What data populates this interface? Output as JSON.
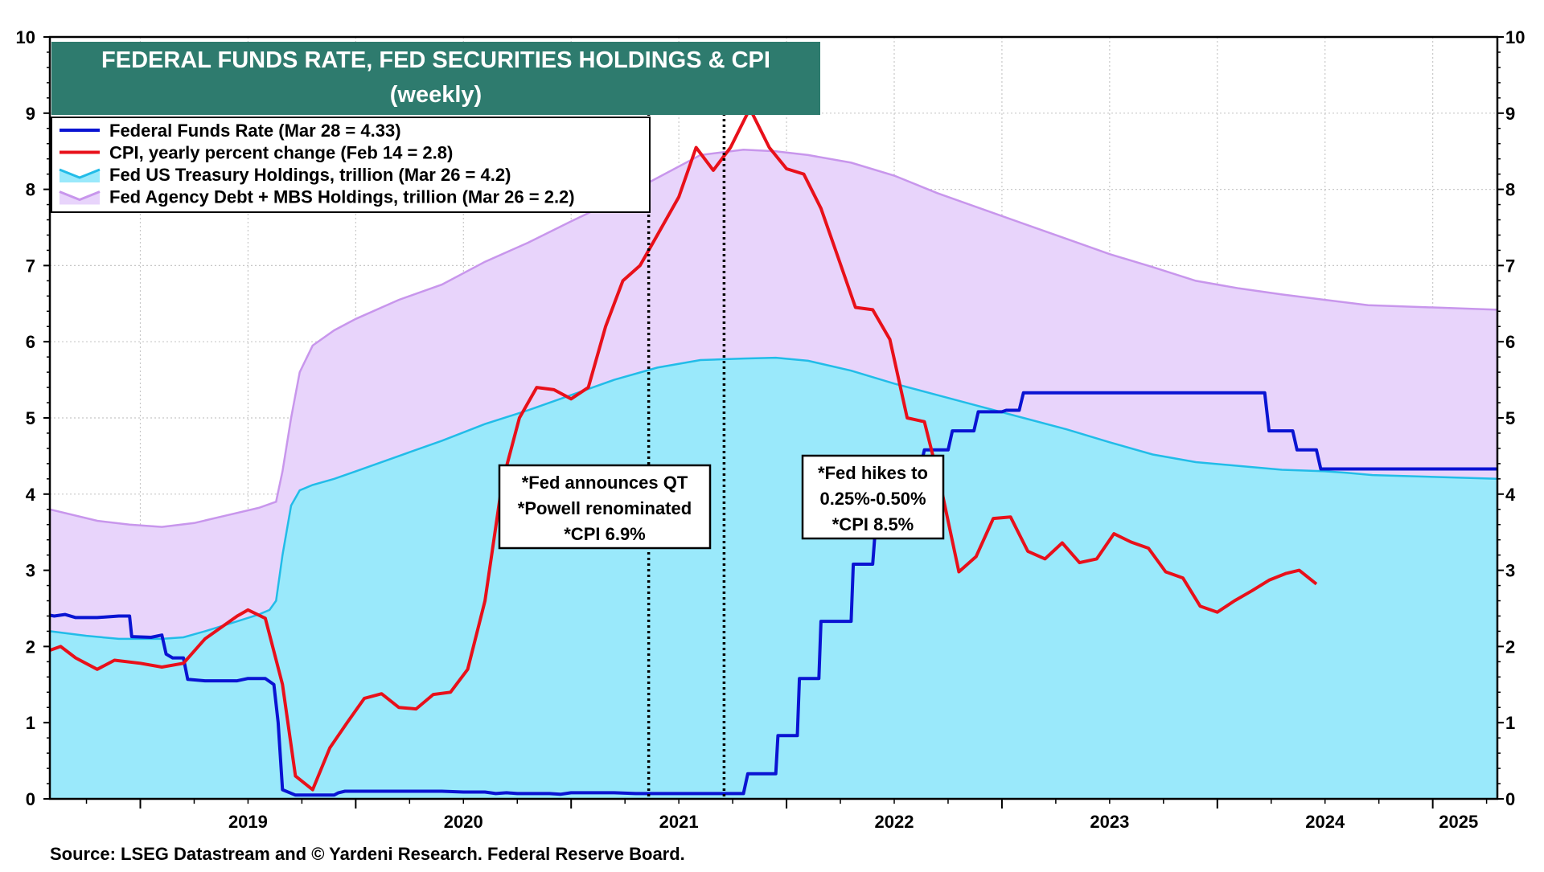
{
  "chart_data": {
    "type": "area",
    "title": "FEDERAL FUNDS RATE, FED SECURITIES HOLDINGS & CPI",
    "subtitle": "(weekly)",
    "source": "Source: LSEG Datastream and © Yardeni Research. Federal Reserve Board.",
    "xlim": [
      2018.58,
      2025.3
    ],
    "ylim": [
      0,
      10
    ],
    "y_ticks": [
      "0",
      "1",
      "2",
      "3",
      "4",
      "5",
      "6",
      "7",
      "8",
      "9",
      "10"
    ],
    "x_tick_labels": [
      "2019",
      "2020",
      "2021",
      "2022",
      "2023",
      "2024",
      "2025"
    ],
    "grid": true,
    "legend_position": "top-left",
    "colors": {
      "fed_funds": "#0a14d2",
      "cpi": "#e8101a",
      "treasury_fill": "#9ae9fb",
      "treasury_line": "#22bce8",
      "mbs_fill": "#e8d4fb",
      "mbs_line": "#c896ec",
      "title_bg": "#2e7b6e"
    },
    "series": [
      {
        "name": "Federal Funds Rate (Mar 28 = 4.33)",
        "kind": "line",
        "points": [
          [
            2018.58,
            2.41
          ],
          [
            2018.6,
            2.4
          ],
          [
            2018.65,
            2.42
          ],
          [
            2018.7,
            2.38
          ],
          [
            2018.8,
            2.38
          ],
          [
            2018.9,
            2.4
          ],
          [
            2018.95,
            2.4
          ],
          [
            2018.96,
            2.13
          ],
          [
            2019.05,
            2.12
          ],
          [
            2019.1,
            2.15
          ],
          [
            2019.12,
            1.9
          ],
          [
            2019.15,
            1.85
          ],
          [
            2019.2,
            1.85
          ],
          [
            2019.22,
            1.57
          ],
          [
            2019.3,
            1.55
          ],
          [
            2019.45,
            1.55
          ],
          [
            2019.5,
            1.58
          ],
          [
            2019.58,
            1.58
          ],
          [
            2019.62,
            1.5
          ],
          [
            2019.64,
            1.0
          ],
          [
            2019.66,
            0.12
          ],
          [
            2019.72,
            0.05
          ],
          [
            2019.8,
            0.05
          ],
          [
            2019.9,
            0.05
          ],
          [
            2019.92,
            0.08
          ],
          [
            2019.95,
            0.1
          ],
          [
            2020.1,
            0.1
          ],
          [
            2020.4,
            0.1
          ],
          [
            2020.5,
            0.09
          ],
          [
            2020.6,
            0.09
          ],
          [
            2020.65,
            0.07
          ],
          [
            2020.7,
            0.08
          ],
          [
            2020.75,
            0.07
          ],
          [
            2020.9,
            0.07
          ],
          [
            2020.95,
            0.06
          ],
          [
            2021.0,
            0.08
          ],
          [
            2021.2,
            0.08
          ],
          [
            2021.3,
            0.07
          ],
          [
            2021.8,
            0.07
          ],
          [
            2021.82,
            0.33
          ],
          [
            2021.95,
            0.33
          ],
          [
            2021.96,
            0.83
          ],
          [
            2022.05,
            0.83
          ],
          [
            2022.06,
            1.58
          ],
          [
            2022.15,
            1.58
          ],
          [
            2022.16,
            2.33
          ],
          [
            2022.3,
            2.33
          ],
          [
            2022.31,
            3.08
          ],
          [
            2022.4,
            3.08
          ],
          [
            2022.42,
            3.83
          ],
          [
            2022.48,
            3.83
          ],
          [
            2022.5,
            4.33
          ],
          [
            2022.62,
            4.33
          ],
          [
            2022.64,
            4.58
          ],
          [
            2022.75,
            4.58
          ],
          [
            2022.77,
            4.83
          ],
          [
            2022.87,
            4.83
          ],
          [
            2022.89,
            5.08
          ],
          [
            2023.0,
            5.08
          ],
          [
            2023.02,
            5.1
          ],
          [
            2023.08,
            5.1
          ],
          [
            2023.1,
            5.33
          ],
          [
            2024.22,
            5.33
          ],
          [
            2024.24,
            4.83
          ],
          [
            2024.35,
            4.83
          ],
          [
            2024.37,
            4.58
          ],
          [
            2024.46,
            4.58
          ],
          [
            2024.48,
            4.33
          ],
          [
            2025.3,
            4.33
          ]
        ]
      },
      {
        "name": "CPI, yearly percent change (Feb 14 = 2.8)",
        "kind": "line",
        "points": [
          [
            2018.58,
            1.95
          ],
          [
            2018.63,
            2.0
          ],
          [
            2018.7,
            1.85
          ],
          [
            2018.8,
            1.7
          ],
          [
            2018.88,
            1.82
          ],
          [
            2019.0,
            1.78
          ],
          [
            2019.1,
            1.73
          ],
          [
            2019.2,
            1.78
          ],
          [
            2019.3,
            2.1
          ],
          [
            2019.4,
            2.3
          ],
          [
            2019.45,
            2.4
          ],
          [
            2019.5,
            2.48
          ],
          [
            2019.58,
            2.37
          ],
          [
            2019.66,
            1.5
          ],
          [
            2019.72,
            0.3
          ],
          [
            2019.8,
            0.12
          ],
          [
            2019.88,
            0.67
          ],
          [
            2019.96,
            1.0
          ],
          [
            2020.04,
            1.32
          ],
          [
            2020.12,
            1.38
          ],
          [
            2020.2,
            1.2
          ],
          [
            2020.28,
            1.18
          ],
          [
            2020.36,
            1.37
          ],
          [
            2020.44,
            1.4
          ],
          [
            2020.52,
            1.7
          ],
          [
            2020.6,
            2.6
          ],
          [
            2020.68,
            4.15
          ],
          [
            2020.76,
            5.0
          ],
          [
            2020.84,
            5.4
          ],
          [
            2020.92,
            5.37
          ],
          [
            2021.0,
            5.25
          ],
          [
            2021.08,
            5.4
          ],
          [
            2021.16,
            6.2
          ],
          [
            2021.24,
            6.8
          ],
          [
            2021.32,
            7.0
          ],
          [
            2021.4,
            7.4
          ],
          [
            2021.5,
            7.9
          ],
          [
            2021.58,
            8.55
          ],
          [
            2021.66,
            8.25
          ],
          [
            2021.74,
            8.55
          ],
          [
            2021.83,
            9.06
          ],
          [
            2021.92,
            8.55
          ],
          [
            2022.0,
            8.27
          ],
          [
            2022.08,
            8.2
          ],
          [
            2022.16,
            7.75
          ],
          [
            2022.24,
            7.1
          ],
          [
            2022.32,
            6.45
          ],
          [
            2022.4,
            6.42
          ],
          [
            2022.48,
            6.03
          ],
          [
            2022.56,
            5.0
          ],
          [
            2022.64,
            4.95
          ],
          [
            2022.72,
            4.05
          ],
          [
            2022.8,
            2.98
          ],
          [
            2022.88,
            3.18
          ],
          [
            2022.96,
            3.68
          ],
          [
            2023.04,
            3.7
          ],
          [
            2023.12,
            3.25
          ],
          [
            2023.2,
            3.15
          ],
          [
            2023.28,
            3.36
          ],
          [
            2023.36,
            3.1
          ],
          [
            2023.44,
            3.15
          ],
          [
            2023.52,
            3.48
          ],
          [
            2023.6,
            3.37
          ],
          [
            2023.68,
            3.29
          ],
          [
            2023.76,
            2.98
          ],
          [
            2023.84,
            2.9
          ],
          [
            2023.92,
            2.53
          ],
          [
            2024.0,
            2.45
          ],
          [
            2024.08,
            2.6
          ],
          [
            2024.16,
            2.73
          ],
          [
            2024.24,
            2.87
          ],
          [
            2024.32,
            2.96
          ],
          [
            2024.38,
            3.0
          ],
          [
            2024.46,
            2.82
          ]
        ]
      },
      {
        "name": "Fed US Treasury Holdings, trillion (Mar 26 = 4.2)",
        "kind": "area",
        "points": [
          [
            2018.58,
            2.2
          ],
          [
            2018.75,
            2.14
          ],
          [
            2018.9,
            2.1
          ],
          [
            2019.0,
            2.1
          ],
          [
            2019.1,
            2.1
          ],
          [
            2019.2,
            2.12
          ],
          [
            2019.3,
            2.2
          ],
          [
            2019.45,
            2.33
          ],
          [
            2019.55,
            2.42
          ],
          [
            2019.6,
            2.48
          ],
          [
            2019.63,
            2.6
          ],
          [
            2019.66,
            3.2
          ],
          [
            2019.7,
            3.85
          ],
          [
            2019.74,
            4.05
          ],
          [
            2019.8,
            4.12
          ],
          [
            2019.9,
            4.2
          ],
          [
            2020.0,
            4.3
          ],
          [
            2020.2,
            4.5
          ],
          [
            2020.4,
            4.7
          ],
          [
            2020.6,
            4.92
          ],
          [
            2020.8,
            5.1
          ],
          [
            2021.0,
            5.3
          ],
          [
            2021.2,
            5.5
          ],
          [
            2021.4,
            5.66
          ],
          [
            2021.6,
            5.76
          ],
          [
            2021.8,
            5.78
          ],
          [
            2021.95,
            5.79
          ],
          [
            2022.1,
            5.75
          ],
          [
            2022.3,
            5.62
          ],
          [
            2022.5,
            5.45
          ],
          [
            2022.7,
            5.3
          ],
          [
            2022.9,
            5.15
          ],
          [
            2023.1,
            5.0
          ],
          [
            2023.3,
            4.85
          ],
          [
            2023.5,
            4.68
          ],
          [
            2023.7,
            4.52
          ],
          [
            2023.9,
            4.42
          ],
          [
            2024.1,
            4.37
          ],
          [
            2024.3,
            4.32
          ],
          [
            2024.5,
            4.3
          ],
          [
            2024.6,
            4.28
          ],
          [
            2024.72,
            4.25
          ],
          [
            2025.3,
            4.2
          ]
        ]
      },
      {
        "name": "Fed Agency Debt + MBS Holdings, trillion (Mar 26 = 2.2)",
        "kind": "stacked_area_top",
        "points": [
          [
            2018.58,
            3.8
          ],
          [
            2018.8,
            3.65
          ],
          [
            2018.95,
            3.6
          ],
          [
            2019.1,
            3.57
          ],
          [
            2019.25,
            3.62
          ],
          [
            2019.4,
            3.72
          ],
          [
            2019.55,
            3.82
          ],
          [
            2019.63,
            3.9
          ],
          [
            2019.66,
            4.3
          ],
          [
            2019.7,
            5.0
          ],
          [
            2019.74,
            5.6
          ],
          [
            2019.8,
            5.95
          ],
          [
            2019.9,
            6.15
          ],
          [
            2020.0,
            6.3
          ],
          [
            2020.2,
            6.55
          ],
          [
            2020.4,
            6.75
          ],
          [
            2020.6,
            7.05
          ],
          [
            2020.8,
            7.3
          ],
          [
            2021.0,
            7.58
          ],
          [
            2021.2,
            7.85
          ],
          [
            2021.4,
            8.15
          ],
          [
            2021.6,
            8.45
          ],
          [
            2021.8,
            8.52
          ],
          [
            2021.95,
            8.5
          ],
          [
            2022.1,
            8.45
          ],
          [
            2022.3,
            8.35
          ],
          [
            2022.5,
            8.18
          ],
          [
            2022.7,
            7.95
          ],
          [
            2022.9,
            7.75
          ],
          [
            2023.1,
            7.55
          ],
          [
            2023.3,
            7.35
          ],
          [
            2023.5,
            7.15
          ],
          [
            2023.7,
            6.98
          ],
          [
            2023.9,
            6.8
          ],
          [
            2024.1,
            6.7
          ],
          [
            2024.3,
            6.62
          ],
          [
            2024.5,
            6.55
          ],
          [
            2024.7,
            6.48
          ],
          [
            2025.3,
            6.42
          ]
        ]
      }
    ],
    "annotations": [
      {
        "lines": [
          "*Fed announces QT",
          "*Powell renominated",
          "*CPI 6.9%"
        ]
      },
      {
        "lines": [
          "*Fed hikes to",
          "0.25%-0.50%",
          "*CPI 8.5%"
        ]
      }
    ],
    "vertical_markers": [
      2021.36,
      2021.71
    ]
  }
}
